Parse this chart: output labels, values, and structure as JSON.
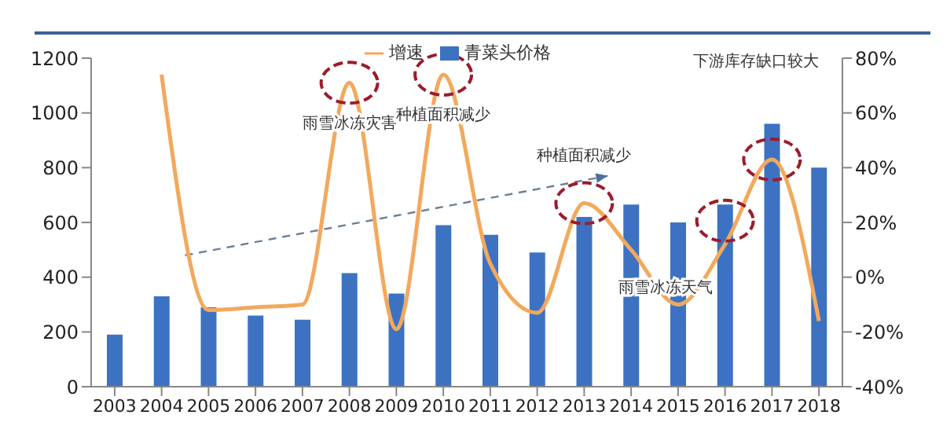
{
  "chart_data": {
    "type": "bar",
    "categories": [
      "2003",
      "2004",
      "2005",
      "2006",
      "2007",
      "2008",
      "2009",
      "2010",
      "2011",
      "2012",
      "2013",
      "2014",
      "2015",
      "2016",
      "2017",
      "2018"
    ],
    "series": [
      {
        "name": "青菜头价格",
        "color": "#3d72c2",
        "values": [
          190,
          330,
          290,
          260,
          245,
          415,
          340,
          590,
          555,
          490,
          620,
          665,
          600,
          665,
          960,
          800
        ]
      },
      {
        "name": "增速",
        "type": "line",
        "axis": "y2",
        "color": "#f2a95c",
        "values": [
          null,
          74,
          -12,
          -11,
          -10,
          71,
          -19,
          74,
          5,
          -13,
          27,
          10,
          -10,
          12,
          43,
          -16
        ]
      }
    ],
    "ylim": [
      0,
      1200
    ],
    "yticks": [
      0,
      200,
      400,
      600,
      800,
      1000,
      1200
    ],
    "y2lim": [
      -40,
      80
    ],
    "y2ticks": [
      {
        "value": -40,
        "label": "-40%"
      },
      {
        "value": -20,
        "label": "-20%"
      },
      {
        "value": 0,
        "label": "0%"
      },
      {
        "value": 20,
        "label": "20%"
      },
      {
        "value": 40,
        "label": "40%"
      },
      {
        "value": 60,
        "label": "60%"
      },
      {
        "value": 80,
        "label": "80%"
      }
    ],
    "annotations": [
      "雨雪冰冻灾害",
      "种植面积减少",
      "种植面积减少",
      "下游库存缺口较大",
      "雨雪冰冻天气"
    ],
    "legend": "top",
    "grid": false
  }
}
